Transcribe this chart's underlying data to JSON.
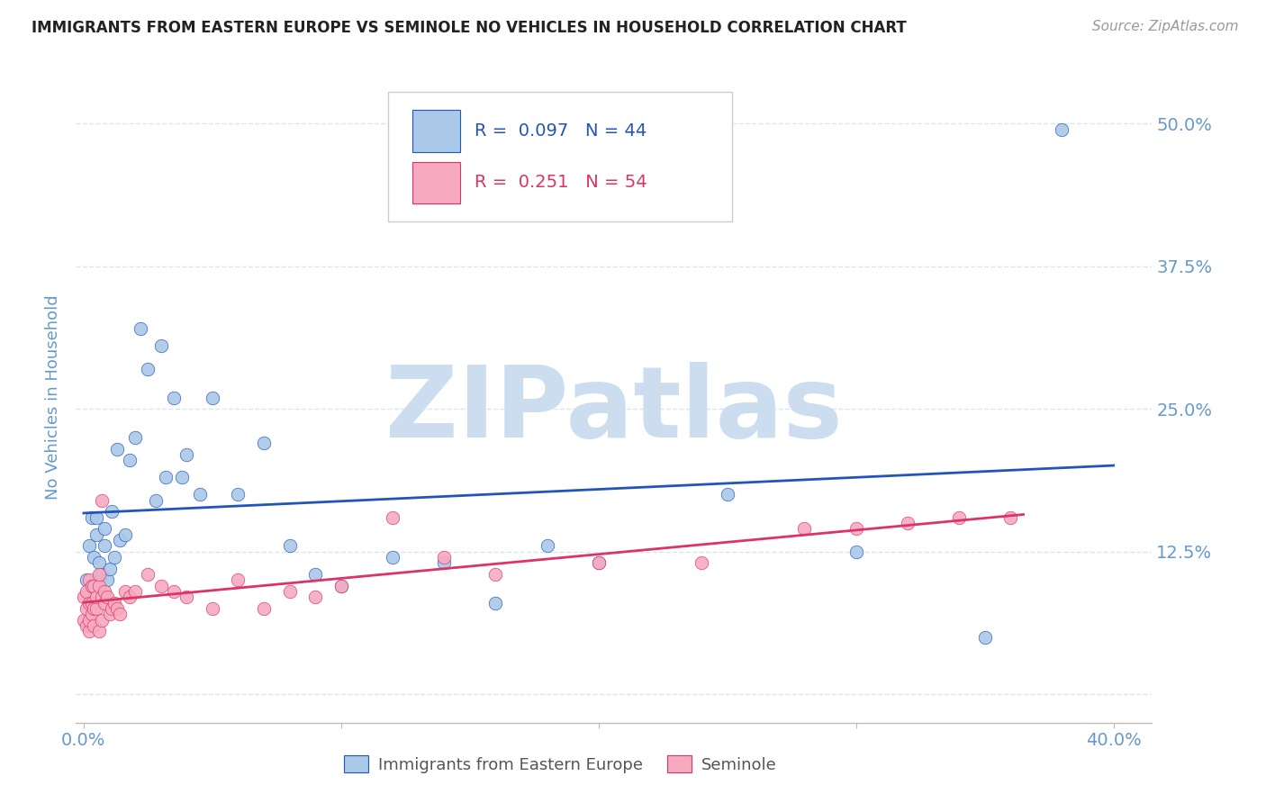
{
  "title": "IMMIGRANTS FROM EASTERN EUROPE VS SEMINOLE NO VEHICLES IN HOUSEHOLD CORRELATION CHART",
  "source": "Source: ZipAtlas.com",
  "ylabel": "No Vehicles in Household",
  "yticks": [
    0.0,
    0.125,
    0.25,
    0.375,
    0.5
  ],
  "ytick_labels": [
    "",
    "12.5%",
    "25.0%",
    "37.5%",
    "50.0%"
  ],
  "xlim": [
    -0.003,
    0.415
  ],
  "ylim": [
    -0.025,
    0.545
  ],
  "blue_R": 0.097,
  "blue_N": 44,
  "pink_R": 0.251,
  "pink_N": 54,
  "blue_label": "Immigrants from Eastern Europe",
  "pink_label": "Seminole",
  "blue_color": "#aac8e8",
  "pink_color": "#f5aac0",
  "blue_line_color": "#2255bb",
  "pink_line_color": "#dd3366",
  "title_color": "#222222",
  "tick_color": "#6699cc",
  "grid_color": "#d8e4f0",
  "background_color": "#ffffff",
  "blue_x": [
    0.001,
    0.002,
    0.003,
    0.004,
    0.005,
    0.006,
    0.007,
    0.008,
    0.009,
    0.01,
    0.011,
    0.012,
    0.013,
    0.014,
    0.016,
    0.018,
    0.02,
    0.022,
    0.025,
    0.028,
    0.03,
    0.032,
    0.035,
    0.038,
    0.04,
    0.045,
    0.05,
    0.06,
    0.07,
    0.08,
    0.09,
    0.1,
    0.12,
    0.14,
    0.16,
    0.18,
    0.2,
    0.25,
    0.3,
    0.35,
    0.003,
    0.005,
    0.008,
    0.38
  ],
  "blue_y": [
    0.1,
    0.13,
    0.095,
    0.12,
    0.14,
    0.115,
    0.105,
    0.13,
    0.1,
    0.11,
    0.16,
    0.12,
    0.215,
    0.135,
    0.14,
    0.205,
    0.225,
    0.32,
    0.285,
    0.17,
    0.305,
    0.19,
    0.26,
    0.19,
    0.21,
    0.175,
    0.26,
    0.175,
    0.22,
    0.13,
    0.105,
    0.095,
    0.12,
    0.115,
    0.08,
    0.13,
    0.115,
    0.175,
    0.125,
    0.05,
    0.155,
    0.155,
    0.145,
    0.495
  ],
  "pink_x": [
    0.0,
    0.0,
    0.001,
    0.001,
    0.001,
    0.002,
    0.002,
    0.002,
    0.002,
    0.003,
    0.003,
    0.003,
    0.004,
    0.004,
    0.004,
    0.005,
    0.005,
    0.006,
    0.006,
    0.006,
    0.007,
    0.007,
    0.007,
    0.008,
    0.008,
    0.009,
    0.01,
    0.011,
    0.012,
    0.013,
    0.014,
    0.016,
    0.018,
    0.02,
    0.025,
    0.03,
    0.035,
    0.04,
    0.05,
    0.06,
    0.07,
    0.08,
    0.09,
    0.1,
    0.12,
    0.14,
    0.16,
    0.2,
    0.24,
    0.28,
    0.3,
    0.32,
    0.34,
    0.36
  ],
  "pink_y": [
    0.085,
    0.065,
    0.06,
    0.075,
    0.09,
    0.055,
    0.065,
    0.08,
    0.1,
    0.07,
    0.08,
    0.095,
    0.06,
    0.075,
    0.095,
    0.075,
    0.085,
    0.095,
    0.105,
    0.055,
    0.085,
    0.065,
    0.17,
    0.08,
    0.09,
    0.085,
    0.07,
    0.075,
    0.08,
    0.075,
    0.07,
    0.09,
    0.085,
    0.09,
    0.105,
    0.095,
    0.09,
    0.085,
    0.075,
    0.1,
    0.075,
    0.09,
    0.085,
    0.095,
    0.155,
    0.12,
    0.105,
    0.115,
    0.115,
    0.145,
    0.145,
    0.15,
    0.155,
    0.155
  ],
  "watermark": "ZIPatlas",
  "watermark_color": "#ccddf0",
  "figsize": [
    14.06,
    8.92
  ],
  "dpi": 100
}
